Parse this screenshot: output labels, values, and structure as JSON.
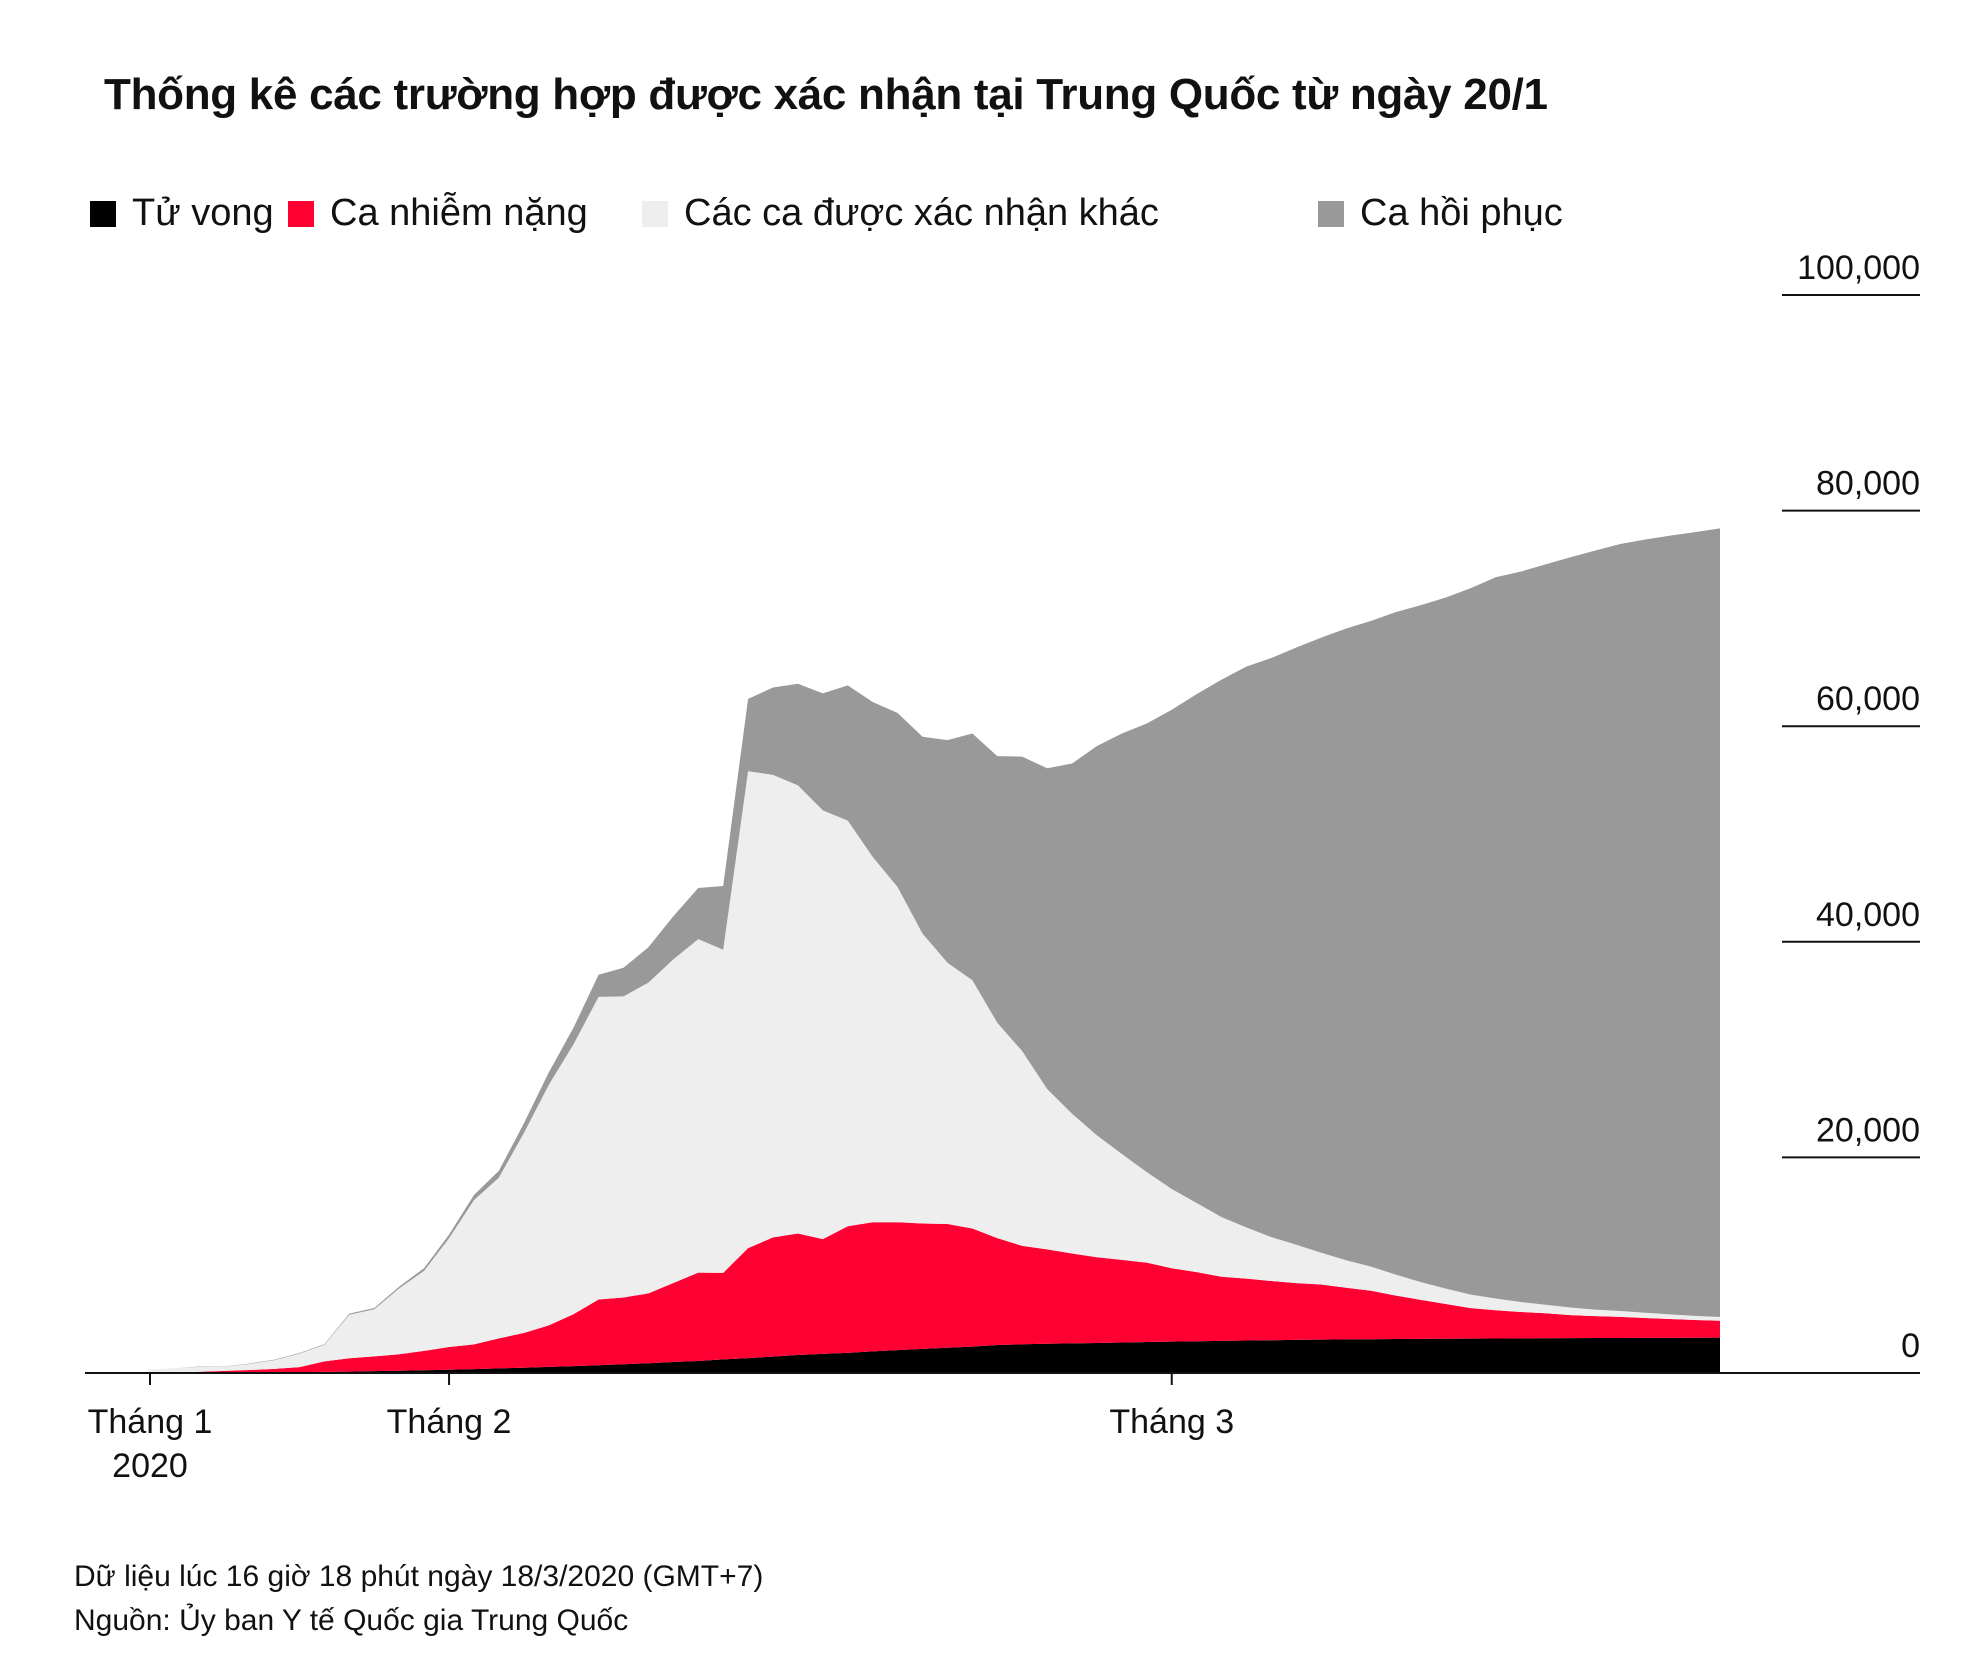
{
  "title": "Thống kê các trường hợp được xác nhận tại Trung Quốc từ ngày 20/1",
  "legend": [
    {
      "label": "Tử vong",
      "color": "#000000"
    },
    {
      "label": "Ca nhiễm nặng",
      "color": "#ff0033"
    },
    {
      "label": "Các ca được xác nhận khác",
      "color": "#eeeeee"
    },
    {
      "label": "Ca hồi phục",
      "color": "#999999"
    }
  ],
  "footer": {
    "note": "Dữ liệu lúc 16 giờ 18 phút ngày 18/3/2020 (GMT+7)",
    "source": "Nguồn: Ủy ban Y tế Quốc gia Trung Quốc"
  },
  "chart_data": {
    "type": "area",
    "stacked": true,
    "x_start": "2020-01-20",
    "x": [
      "2020-01-20",
      "2020-01-21",
      "2020-01-22",
      "2020-01-23",
      "2020-01-24",
      "2020-01-25",
      "2020-01-26",
      "2020-01-27",
      "2020-01-28",
      "2020-01-29",
      "2020-01-30",
      "2020-01-31",
      "2020-02-01",
      "2020-02-02",
      "2020-02-03",
      "2020-02-04",
      "2020-02-05",
      "2020-02-06",
      "2020-02-07",
      "2020-02-08",
      "2020-02-09",
      "2020-02-10",
      "2020-02-11",
      "2020-02-12",
      "2020-02-13",
      "2020-02-14",
      "2020-02-15",
      "2020-02-16",
      "2020-02-17",
      "2020-02-18",
      "2020-02-19",
      "2020-02-20",
      "2020-02-21",
      "2020-02-22",
      "2020-02-23",
      "2020-02-24",
      "2020-02-25",
      "2020-02-26",
      "2020-02-27",
      "2020-02-28",
      "2020-02-29",
      "2020-03-01",
      "2020-03-02",
      "2020-03-03",
      "2020-03-04",
      "2020-03-05",
      "2020-03-06",
      "2020-03-07",
      "2020-03-08",
      "2020-03-09",
      "2020-03-10",
      "2020-03-11",
      "2020-03-12",
      "2020-03-13",
      "2020-03-14",
      "2020-03-15",
      "2020-03-16",
      "2020-03-17",
      "2020-03-18",
      "2020-03-19",
      "2020-03-20",
      "2020-03-21",
      "2020-03-22",
      "2020-03-23"
    ],
    "series": [
      {
        "name": "Tử vong",
        "color": "#000000",
        "values": [
          6,
          9,
          17,
          25,
          41,
          56,
          80,
          106,
          132,
          170,
          213,
          259,
          304,
          361,
          425,
          490,
          563,
          636,
          722,
          811,
          908,
          1016,
          1113,
          1259,
          1380,
          1523,
          1665,
          1770,
          1868,
          2004,
          2118,
          2236,
          2345,
          2442,
          2592,
          2663,
          2715,
          2744,
          2788,
          2835,
          2870,
          2912,
          2943,
          2981,
          3012,
          3042,
          3070,
          3097,
          3119,
          3136,
          3158,
          3169,
          3176,
          3189,
          3199,
          3213,
          3226,
          3237,
          3245,
          3248,
          3255,
          3261,
          3270,
          3276
        ]
      },
      {
        "name": "Ca nhiễm nặng",
        "color": "#ff0033",
        "values": [
          0,
          0,
          95,
          177,
          237,
          324,
          461,
          976,
          1239,
          1370,
          1527,
          1795,
          2110,
          2296,
          2788,
          3219,
          3859,
          4821,
          6101,
          6188,
          6484,
          7333,
          8204,
          8030,
          10204,
          11053,
          11272,
          10644,
          11741,
          11977,
          11864,
          11633,
          11477,
          10968,
          9915,
          9126,
          8752,
          8346,
          7952,
          7664,
          7365,
          6806,
          6416,
          5952,
          5737,
          5489,
          5264,
          5111,
          4794,
          4492,
          4020,
          3610,
          3226,
          2830,
          2622,
          2451,
          2314,
          2136,
          2033,
          1963,
          1845,
          1749,
          1649,
          1573
        ]
      },
      {
        "name": "Các ca được xác nhận khác",
        "color": "#eeeeee",
        "values": [
          291,
          431,
          459,
          384,
          567,
          817,
          1262,
          1539,
          4033,
          4371,
          6105,
          7429,
          10091,
          13376,
          14914,
          18540,
          22296,
          25062,
          28065,
          27939,
          28826,
          30022,
          30936,
          29977,
          44233,
          42913,
          41578,
          39783,
          37628,
          33892,
          31089,
          26886,
          24233,
          23028,
          19985,
          18066,
          14882,
          12954,
          11302,
          9822,
          8395,
          7345,
          6410,
          5529,
          4743,
          4073,
          3566,
          2949,
          2548,
          2241,
          1937,
          1654,
          1428,
          1251,
          1091,
          924,
          791,
          701,
          600,
          544,
          484,
          424,
          382,
          344
        ]
      },
      {
        "name": "Ca hồi phục",
        "color": "#999999",
        "values": [
          0,
          0,
          28,
          34,
          38,
          49,
          51,
          60,
          103,
          124,
          171,
          243,
          328,
          475,
          632,
          892,
          1153,
          1540,
          2050,
          2649,
          3281,
          3996,
          4740,
          5911,
          6723,
          8096,
          9419,
          10844,
          12552,
          14376,
          16155,
          18264,
          20659,
          22888,
          24734,
          27323,
          29745,
          32495,
          36117,
          39002,
          41625,
          44462,
          47204,
          49856,
          52045,
          53726,
          55404,
          57065,
          58600,
          59897,
          61475,
          62793,
          64111,
          65541,
          66911,
          67749,
          68679,
          69601,
          70420,
          71150,
          71740,
          72244,
          72703,
          73159
        ]
      }
    ],
    "x_ticks": [
      {
        "label": "Tháng 1",
        "sublabel": "2020",
        "date": "2020-01-20"
      },
      {
        "label": "Tháng 2",
        "sublabel": "",
        "date": "2020-02-01"
      },
      {
        "label": "Tháng 3",
        "sublabel": "",
        "date": "2020-03-01"
      }
    ],
    "y_ticks": [
      "0",
      "20,000",
      "40,000",
      "60,000",
      "80,000",
      "100,000"
    ],
    "ylim": [
      0,
      100000
    ],
    "grid": false,
    "legend_position": "top"
  }
}
